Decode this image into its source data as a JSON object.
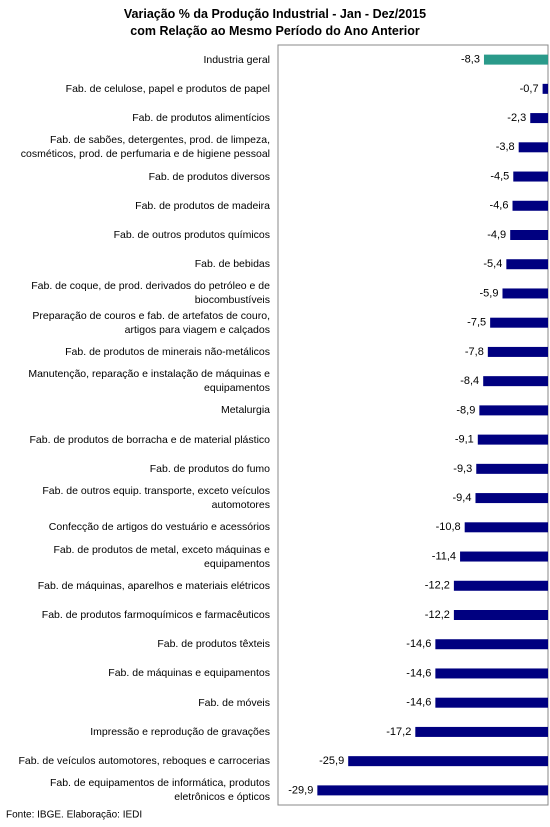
{
  "chart_data": {
    "type": "barh",
    "title": "Variação % da Produção Industrial - Jan - Dez/2015",
    "subtitle": "com Relação ao Mesmo Período do Ano Anterior",
    "source": "Fonte: IBGE. Elaboração: IEDI",
    "categories": [
      "Industria geral",
      "Fab. de celulose, papel e produtos de papel",
      "Fab. de produtos alimentícios",
      "Fab. de sabões, detergentes, prod. de limpeza, cosméticos, prod. de perfumaria e de higiene pessoal",
      "Fab. de produtos diversos",
      "Fab. de produtos de madeira",
      "Fab. de outros produtos químicos",
      "Fab. de bebidas",
      "Fab. de coque, de prod. derivados do petróleo e de biocombustíveis",
      "Preparação de couros e fab. de artefatos de couro, artigos para viagem e calçados",
      "Fab. de produtos de minerais não-metálicos",
      "Manutenção, reparação e instalação de máquinas e equipamentos",
      "Metalurgia",
      "Fab. de produtos de borracha e de material plástico",
      "Fab. de produtos do fumo",
      "Fab. de outros equip. transporte, exceto veículos automotores",
      "Confecção de artigos do vestuário e acessórios",
      "Fab. de produtos de metal, exceto máquinas e equipamentos",
      "Fab. de máquinas, aparelhos e materiais elétricos",
      "Fab. de produtos farmoquímicos e farmacêuticos",
      "Fab. de produtos têxteis",
      "Fab. de máquinas e equipamentos",
      "Fab. de móveis",
      "Impressão e reprodução de gravações",
      "Fab. de veículos automotores, reboques e carrocerias",
      "Fab. de equipamentos de informática, produtos eletrônicos e ópticos"
    ],
    "values": [
      -8.3,
      -0.7,
      -2.3,
      -3.8,
      -4.5,
      -4.6,
      -4.9,
      -5.4,
      -5.9,
      -7.5,
      -7.8,
      -8.4,
      -8.9,
      -9.1,
      -9.3,
      -9.4,
      -10.8,
      -11.4,
      -12.2,
      -12.2,
      -14.6,
      -14.6,
      -14.6,
      -17.2,
      -25.9,
      -29.9
    ],
    "value_labels": [
      "-8,3",
      "-0,7",
      "-2,3",
      "-3,8",
      "-4,5",
      "-4,6",
      "-4,9",
      "-5,4",
      "-5,9",
      "-7,5",
      "-7,8",
      "-8,4",
      "-8,9",
      "-9,1",
      "-9,3",
      "-9,4",
      "-10,8",
      "-11,4",
      "-12,2",
      "-12,2",
      "-14,6",
      "-14,6",
      "-14,6",
      "-17,2",
      "-25,9",
      "-29,9"
    ],
    "colors": [
      "#2a9a8a",
      "#000080",
      "#000080",
      "#000080",
      "#000080",
      "#000080",
      "#000080",
      "#000080",
      "#000080",
      "#000080",
      "#000080",
      "#000080",
      "#000080",
      "#000080",
      "#000080",
      "#000080",
      "#000080",
      "#000080",
      "#000080",
      "#000080",
      "#000080",
      "#000080",
      "#000080",
      "#000080",
      "#000080",
      "#000080"
    ],
    "xlim": [
      -35,
      0
    ]
  }
}
